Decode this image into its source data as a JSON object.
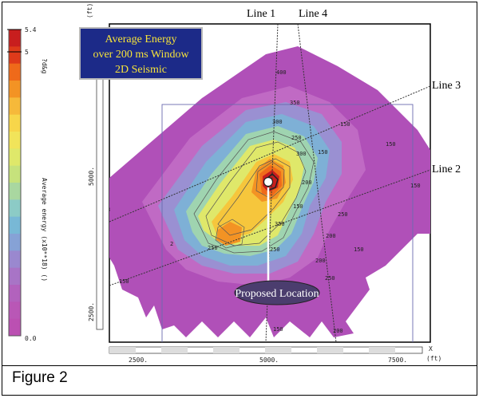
{
  "title_box": {
    "lines": [
      "Average Energy",
      "over 200 ms Window",
      "2D Seismic"
    ],
    "bg_color": "#1c2a88",
    "text_color": "#f6e33a"
  },
  "seismic_lines": {
    "line1": "Line 1",
    "line2": "Line 2",
    "line3": "Line 3",
    "line4": "Line 4"
  },
  "proposed_location": "Proposed Location",
  "colorbar": {
    "max_label": "5.4",
    "mid_label": "5",
    "min_label": "0.0",
    "title": "Average energy (x10**18) ()",
    "extra_text": "?d&g",
    "colors": [
      "#c81e1e",
      "#de3a1a",
      "#ef6a1a",
      "#f39324",
      "#f6b93a",
      "#f7d64a",
      "#f1e45a",
      "#dfe86a",
      "#c6e27c",
      "#a9d7a0",
      "#8ccbc6",
      "#78b8d6",
      "#86a2d6",
      "#9a88cf",
      "#a874c6",
      "#b262bd",
      "#b957b6",
      "#bb50b2"
    ]
  },
  "axes": {
    "x_ticks": [
      "2500.",
      "5000.",
      "7500."
    ],
    "x_name": "X",
    "x_unit": "(ft)",
    "y_ticks": [
      "5000.",
      "2500."
    ],
    "y_unit": "(ft)"
  },
  "contour_labels": [
    "400",
    "350",
    "300",
    "250",
    "150",
    "200",
    "150",
    "250",
    "300",
    "350",
    "250",
    "150",
    "200",
    "250",
    "150",
    "200",
    "150",
    "150",
    "250",
    "150",
    "200",
    "150"
  ],
  "shotpoint_labels": [
    "3",
    "2",
    "2"
  ],
  "caption": "Figure 2"
}
